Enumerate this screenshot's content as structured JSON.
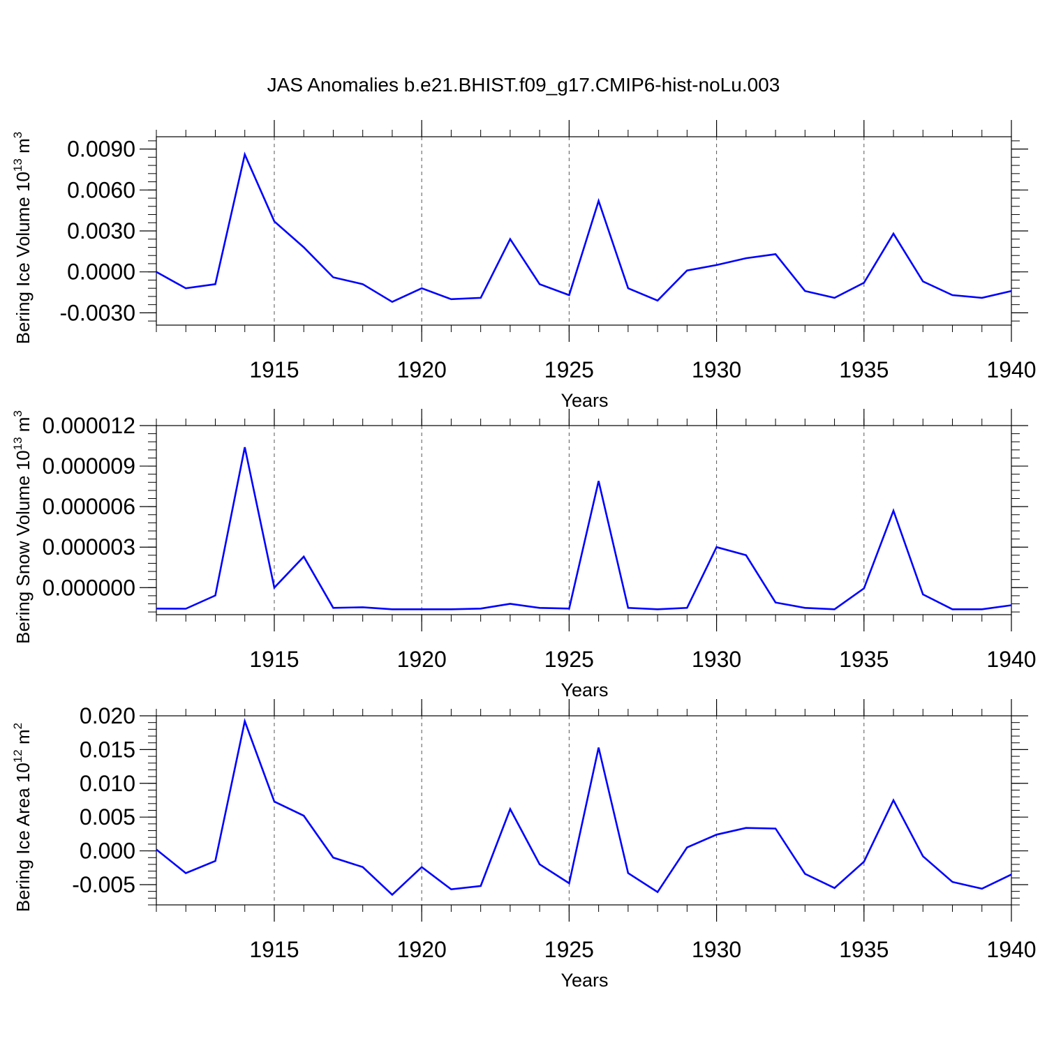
{
  "title": "JAS Anomalies b.e21.BHIST.f09_g17.CMIP6-hist-noLu.003",
  "colors": {
    "line": "#0000ff",
    "axis": "#000000",
    "grid": "#555555",
    "background": "#ffffff"
  },
  "chart_data": [
    {
      "type": "line",
      "title": "JAS Anomalies b.e21.BHIST.f09_g17.CMIP6-hist-noLu.003",
      "xlabel": "Years",
      "ylabel": "Bering Ice Volume 10",
      "ylabel_exp": "13",
      "ylabel_unit": " m",
      "ylabel_unit_exp": "3",
      "xlim": [
        1911,
        1940
      ],
      "ylim": [
        -0.0039,
        0.0099
      ],
      "xticks": [
        1915,
        1920,
        1925,
        1930,
        1935,
        1940
      ],
      "yticks": [
        -0.003,
        0.0,
        0.003,
        0.006,
        0.009
      ],
      "ytick_labels": [
        "-0.0030",
        "0.0000",
        "0.0030",
        "0.0060",
        "0.0090"
      ],
      "grid": "vertical dashed at major x ticks",
      "x": [
        1911,
        1912,
        1913,
        1914,
        1915,
        1916,
        1917,
        1918,
        1919,
        1920,
        1921,
        1922,
        1923,
        1924,
        1925,
        1926,
        1927,
        1928,
        1929,
        1930,
        1931,
        1932,
        1933,
        1934,
        1935,
        1936,
        1937,
        1938,
        1939,
        1940
      ],
      "series": [
        {
          "name": "Bering Ice Volume",
          "values": [
            0.0,
            -0.0012,
            -0.0009,
            0.0086,
            0.0037,
            0.0018,
            -0.0004,
            -0.0009,
            -0.0022,
            -0.0012,
            -0.002,
            -0.0019,
            0.0024,
            -0.0009,
            -0.0017,
            0.0052,
            -0.0012,
            -0.0021,
            0.0001,
            0.0005,
            0.001,
            0.0013,
            -0.0014,
            -0.0019,
            -0.0008,
            0.0028,
            -0.0007,
            -0.0017,
            -0.0019,
            -0.0014
          ]
        }
      ]
    },
    {
      "type": "line",
      "xlabel": "Years",
      "ylabel": "Bering Snow Volume 10",
      "ylabel_exp": "13",
      "ylabel_unit": " m",
      "ylabel_unit_exp": "3",
      "xlim": [
        1911,
        1940
      ],
      "ylim": [
        -2e-06,
        1.2e-05
      ],
      "xticks": [
        1915,
        1920,
        1925,
        1930,
        1935,
        1940
      ],
      "yticks": [
        0.0,
        3e-06,
        6e-06,
        9e-06,
        1.2e-05
      ],
      "ytick_labels": [
        "0.000000",
        "0.000003",
        "0.000006",
        "0.000009",
        "0.000012"
      ],
      "grid": "vertical dashed at major x ticks",
      "x": [
        1911,
        1912,
        1913,
        1914,
        1915,
        1916,
        1917,
        1918,
        1919,
        1920,
        1921,
        1922,
        1923,
        1924,
        1925,
        1926,
        1927,
        1928,
        1929,
        1930,
        1931,
        1932,
        1933,
        1934,
        1935,
        1936,
        1937,
        1938,
        1939,
        1940
      ],
      "series": [
        {
          "name": "Bering Snow Volume",
          "values": [
            -1.55e-06,
            -1.56e-06,
            -5.8e-07,
            1.04e-05,
            0.0,
            2.3e-06,
            -1.5e-06,
            -1.45e-06,
            -1.6e-06,
            -1.6e-06,
            -1.6e-06,
            -1.55e-06,
            -1.2e-06,
            -1.5e-06,
            -1.55e-06,
            7.9e-06,
            -1.5e-06,
            -1.6e-06,
            -1.5e-06,
            3e-06,
            2.4e-06,
            -1.1e-06,
            -1.5e-06,
            -1.6e-06,
            -5e-08,
            5.7e-06,
            -5e-07,
            -1.6e-06,
            -1.6e-06,
            -1.3e-06
          ]
        }
      ]
    },
    {
      "type": "line",
      "xlabel": "Years",
      "ylabel": "Bering Ice Area 10",
      "ylabel_exp": "12",
      "ylabel_unit": " m",
      "ylabel_unit_exp": "2",
      "xlim": [
        1911,
        1940
      ],
      "ylim": [
        -0.008,
        0.02
      ],
      "xticks": [
        1915,
        1920,
        1925,
        1930,
        1935,
        1940
      ],
      "yticks": [
        -0.005,
        0.0,
        0.005,
        0.01,
        0.015,
        0.02
      ],
      "ytick_labels": [
        "-0.005",
        "0.000",
        "0.005",
        "0.010",
        "0.015",
        "0.020"
      ],
      "grid": "vertical dashed at major x ticks",
      "x": [
        1911,
        1912,
        1913,
        1914,
        1915,
        1916,
        1917,
        1918,
        1919,
        1920,
        1921,
        1922,
        1923,
        1924,
        1925,
        1926,
        1927,
        1928,
        1929,
        1930,
        1931,
        1932,
        1933,
        1934,
        1935,
        1936,
        1937,
        1938,
        1939,
        1940
      ],
      "series": [
        {
          "name": "Bering Ice Area",
          "values": [
            0.0002,
            -0.0033,
            -0.0015,
            0.0192,
            0.0073,
            0.0052,
            -0.001,
            -0.0024,
            -0.0065,
            -0.0024,
            -0.0057,
            -0.0052,
            0.0062,
            -0.002,
            -0.0048,
            0.0153,
            -0.0033,
            -0.0061,
            0.0005,
            0.0024,
            0.0034,
            0.0033,
            -0.0034,
            -0.0055,
            -0.0016,
            0.0075,
            -0.0008,
            -0.0046,
            -0.0056,
            -0.0035
          ]
        }
      ]
    }
  ]
}
